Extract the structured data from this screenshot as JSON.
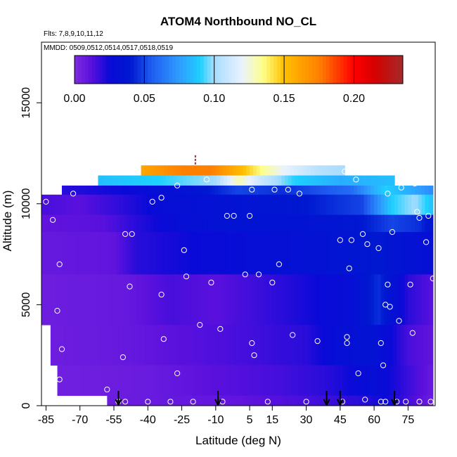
{
  "chart_data": {
    "type": "heatmap",
    "title": "ATOM4 Northbound NO_CL",
    "flights_note": "Flts: 7,8,9,10,11,12",
    "dates_note": "MMDD: 0509,0512,0514,0517,0518,0519",
    "xlabel": "Latitude (deg N)",
    "ylabel": "Altitude (m)",
    "xlim": [
      -87,
      87
    ],
    "ylim": [
      0,
      18000
    ],
    "x_ticks": [
      -85,
      -70,
      -55,
      -40,
      -25,
      -10,
      5,
      15,
      30,
      45,
      60,
      75
    ],
    "y_ticks": [
      0,
      5000,
      10000,
      15000
    ],
    "colorbar": {
      "min": 0.0,
      "max": 0.235,
      "ticks": [
        0.0,
        0.05,
        0.1,
        0.15,
        0.2
      ],
      "tick_labels": [
        "0.00",
        "0.05",
        "0.10",
        "0.15",
        "0.20"
      ],
      "stops": [
        {
          "v": 0.0,
          "c": "#7f2be0"
        },
        {
          "v": 0.012,
          "c": "#5a10dd"
        },
        {
          "v": 0.025,
          "c": "#0a0ad8"
        },
        {
          "v": 0.04,
          "c": "#0018d0"
        },
        {
          "v": 0.055,
          "c": "#1f5cf0"
        },
        {
          "v": 0.075,
          "c": "#2f9cff"
        },
        {
          "v": 0.09,
          "c": "#1ed0ff"
        },
        {
          "v": 0.1,
          "c": "#a8dcff"
        },
        {
          "v": 0.12,
          "c": "#e9f2ff"
        },
        {
          "v": 0.135,
          "c": "#ffff88"
        },
        {
          "v": 0.15,
          "c": "#ffc000"
        },
        {
          "v": 0.175,
          "c": "#ff8000"
        },
        {
          "v": 0.2,
          "c": "#ff0000"
        },
        {
          "v": 0.215,
          "c": "#d40000"
        },
        {
          "v": 0.235,
          "c": "#a52a2a"
        }
      ]
    },
    "layers": [
      {
        "alt_range": [
          11400,
          11900
        ],
        "lat_range": [
          -43,
          47
        ],
        "profile": [
          [
            -43,
            0.16
          ],
          [
            -25,
            0.175
          ],
          [
            -12,
            0.175
          ],
          [
            0,
            0.155
          ],
          [
            10,
            0.135
          ],
          [
            20,
            0.12
          ],
          [
            35,
            0.105
          ],
          [
            47,
            0.1
          ]
        ]
      },
      {
        "alt_range": [
          10900,
          11400
        ],
        "lat_range": [
          -62,
          69
        ],
        "profile": [
          [
            -62,
            0.085
          ],
          [
            -35,
            0.09
          ],
          [
            -10,
            0.1
          ],
          [
            0,
            0.13
          ],
          [
            10,
            0.11
          ],
          [
            25,
            0.09
          ],
          [
            45,
            0.08
          ],
          [
            69,
            0.085
          ]
        ]
      },
      {
        "alt_range": [
          10450,
          10900
        ],
        "lat_range": [
          -78,
          86
        ],
        "profile": [
          [
            -78,
            0.02
          ],
          [
            -50,
            0.025
          ],
          [
            -20,
            0.035
          ],
          [
            0,
            0.05
          ],
          [
            20,
            0.045
          ],
          [
            50,
            0.06
          ],
          [
            65,
            0.09
          ],
          [
            86,
            0.07
          ]
        ]
      },
      {
        "alt_range": [
          9450,
          10450
        ],
        "lat_range": [
          -87,
          86
        ],
        "profile": [
          [
            -87,
            0.015
          ],
          [
            -70,
            0.012
          ],
          [
            -50,
            0.02
          ],
          [
            -30,
            0.03
          ],
          [
            0,
            0.035
          ],
          [
            30,
            0.04
          ],
          [
            55,
            0.05
          ],
          [
            68,
            0.09
          ],
          [
            78,
            0.1
          ],
          [
            86,
            0.085
          ]
        ]
      },
      {
        "alt_range": [
          8600,
          9450
        ],
        "lat_range": [
          -87,
          86
        ],
        "profile": [
          [
            -87,
            0.01
          ],
          [
            -60,
            0.012
          ],
          [
            -45,
            0.02
          ],
          [
            -25,
            0.03
          ],
          [
            0,
            0.035
          ],
          [
            30,
            0.035
          ],
          [
            55,
            0.04
          ],
          [
            68,
            0.05
          ],
          [
            80,
            0.045
          ],
          [
            86,
            0.035
          ]
        ]
      },
      {
        "alt_range": [
          6500,
          8600
        ],
        "lat_range": [
          -87,
          86
        ],
        "profile": [
          [
            -87,
            0.008
          ],
          [
            -55,
            0.01
          ],
          [
            -45,
            0.02
          ],
          [
            -20,
            0.025
          ],
          [
            10,
            0.03
          ],
          [
            40,
            0.035
          ],
          [
            60,
            0.04
          ],
          [
            86,
            0.03
          ]
        ]
      },
      {
        "alt_range": [
          4000,
          6500
        ],
        "lat_range": [
          -87,
          86
        ],
        "profile": [
          [
            -87,
            0.006
          ],
          [
            -50,
            0.008
          ],
          [
            -30,
            0.015
          ],
          [
            -10,
            0.012
          ],
          [
            20,
            0.02
          ],
          [
            50,
            0.03
          ],
          [
            62,
            0.045
          ],
          [
            75,
            0.02
          ],
          [
            86,
            0.012
          ]
        ]
      },
      {
        "alt_range": [
          2000,
          4000
        ],
        "lat_range": [
          -83,
          86
        ],
        "profile": [
          [
            -83,
            0.006
          ],
          [
            -50,
            0.008
          ],
          [
            -25,
            0.012
          ],
          [
            0,
            0.015
          ],
          [
            30,
            0.02
          ],
          [
            45,
            0.03
          ],
          [
            60,
            0.035
          ],
          [
            75,
            0.015
          ],
          [
            86,
            0.01
          ]
        ]
      },
      {
        "alt_range": [
          500,
          2000
        ],
        "lat_range": [
          -80,
          86
        ],
        "profile": [
          [
            -80,
            0.005
          ],
          [
            -40,
            0.007
          ],
          [
            -10,
            0.012
          ],
          [
            15,
            0.015
          ],
          [
            40,
            0.02
          ],
          [
            60,
            0.03
          ],
          [
            86,
            0.008
          ]
        ]
      },
      {
        "alt_range": [
          0,
          500
        ],
        "lat_range": [
          -58,
          86
        ],
        "profile": [
          [
            -58,
            0.006
          ],
          [
            -30,
            0.008
          ],
          [
            0,
            0.01
          ],
          [
            30,
            0.015
          ],
          [
            55,
            0.02
          ],
          [
            65,
            0.025
          ],
          [
            86,
            0.006
          ]
        ]
      }
    ],
    "sample_points": [
      [
        -85,
        10100
      ],
      [
        -82,
        9200
      ],
      [
        -79,
        7000
      ],
      [
        -80,
        4700
      ],
      [
        -78,
        2800
      ],
      [
        -79,
        1300
      ],
      [
        -85,
        3400
      ],
      [
        -73,
        10500
      ],
      [
        -58,
        800
      ],
      [
        -53,
        200
      ],
      [
        -50,
        200
      ],
      [
        -51,
        2400
      ],
      [
        -48,
        5900
      ],
      [
        -50,
        8500
      ],
      [
        -47,
        8500
      ],
      [
        -38,
        10100
      ],
      [
        -34,
        10300
      ],
      [
        -33,
        3300
      ],
      [
        -34,
        5500
      ],
      [
        -40,
        200
      ],
      [
        -30,
        200
      ],
      [
        -23,
        6400
      ],
      [
        -24,
        7700
      ],
      [
        -27,
        10900
      ],
      [
        -14,
        11200
      ],
      [
        -17,
        4000
      ],
      [
        -12,
        6100
      ],
      [
        -8,
        3800
      ],
      [
        -27,
        1600
      ],
      [
        -20,
        200
      ],
      [
        -7,
        200
      ],
      [
        -5,
        9400
      ],
      [
        -2,
        9400
      ],
      [
        3,
        6500
      ],
      [
        5,
        9400
      ],
      [
        6,
        10700
      ],
      [
        6,
        3100
      ],
      [
        7,
        2500
      ],
      [
        9,
        6500
      ],
      [
        13,
        200
      ],
      [
        16,
        10700
      ],
      [
        15,
        6100
      ],
      [
        18,
        7000
      ],
      [
        22,
        10700
      ],
      [
        24,
        3500
      ],
      [
        27,
        10500
      ],
      [
        30,
        200
      ],
      [
        35,
        3200
      ],
      [
        45,
        8200
      ],
      [
        47,
        11600
      ],
      [
        48,
        3400
      ],
      [
        49,
        6800
      ],
      [
        50,
        8200
      ],
      [
        52,
        11200
      ],
      [
        53,
        1600
      ],
      [
        55,
        8500
      ],
      [
        57,
        8000
      ],
      [
        48,
        3100
      ],
      [
        46,
        200
      ],
      [
        56,
        300
      ],
      [
        62,
        7800
      ],
      [
        63,
        3100
      ],
      [
        64,
        2000
      ],
      [
        65,
        5000
      ],
      [
        66,
        6000
      ],
      [
        67,
        4900
      ],
      [
        68,
        8600
      ],
      [
        71,
        4200
      ],
      [
        70,
        200
      ],
      [
        76,
        6000
      ],
      [
        77,
        3600
      ],
      [
        79,
        9600
      ],
      [
        80,
        9300
      ],
      [
        83,
        8100
      ],
      [
        84,
        9400
      ],
      [
        86,
        6300
      ],
      [
        85,
        200
      ],
      [
        66,
        10500
      ],
      [
        72,
        10800
      ],
      [
        78,
        11000
      ],
      [
        63,
        200
      ],
      [
        65,
        200
      ],
      [
        74,
        200
      ],
      [
        80,
        200
      ]
    ],
    "arrow_latitudes": [
      -53,
      -9,
      39,
      45,
      69
    ]
  }
}
